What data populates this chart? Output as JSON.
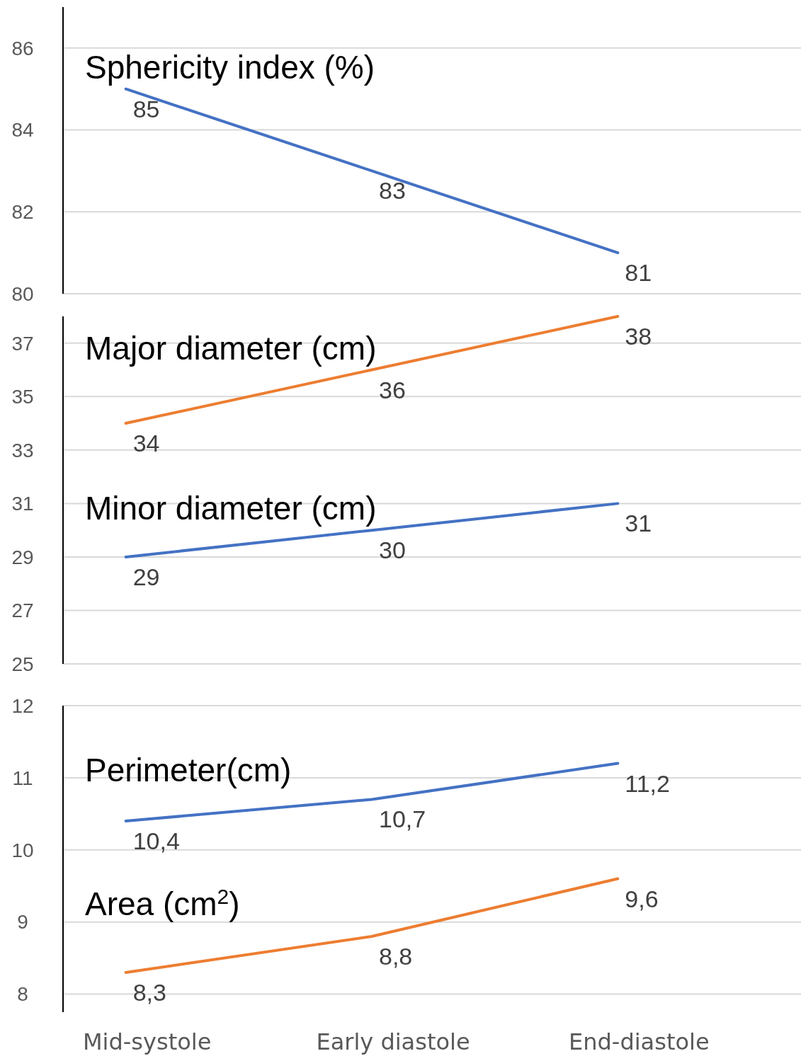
{
  "chart_data": [
    {
      "type": "line",
      "categories": [
        null,
        null,
        null
      ],
      "ylim": [
        80,
        87
      ],
      "yticks": [
        80,
        82,
        84,
        86
      ],
      "grid": "y",
      "tick_labels": "y",
      "series": [
        {
          "name": "Sphericity index (%)",
          "color": "#4472c4",
          "values": [
            85,
            83,
            81
          ],
          "value_labels": [
            "85",
            "83",
            "81"
          ]
        }
      ]
    },
    {
      "type": "line",
      "categories": [
        null,
        null,
        null
      ],
      "ylim": [
        25,
        38
      ],
      "yticks": [
        25,
        27,
        29,
        31,
        33,
        35,
        37
      ],
      "grid": "y",
      "tick_labels": "y",
      "series": [
        {
          "name": "Major diameter (cm)",
          "color": "#ed7d31",
          "values": [
            34,
            36,
            38
          ],
          "value_labels": [
            "34",
            "36",
            "38"
          ]
        },
        {
          "name": "Minor diameter (cm)",
          "color": "#4472c4",
          "values": [
            29,
            30,
            31
          ],
          "value_labels": [
            "29",
            "30",
            "31"
          ]
        }
      ]
    },
    {
      "type": "line",
      "categories": [
        "Mid-systole",
        "Early diastole",
        "End-diastole"
      ],
      "ylim": [
        7.75,
        12
      ],
      "yticks": [
        8,
        9,
        10,
        11,
        12
      ],
      "grid": "y",
      "series": [
        {
          "name": "Perimeter(cm)",
          "color": "#4472c4",
          "values": [
            10.4,
            10.7,
            11.2
          ],
          "value_labels": [
            "10,4",
            "10,7",
            "11,2"
          ]
        },
        {
          "name": "Area (cm$^{2}$)",
          "color": "#ed7d31",
          "values": [
            8.3,
            8.8,
            9.6
          ],
          "value_labels": [
            "8,3",
            "8,8",
            "9,6"
          ]
        }
      ]
    }
  ]
}
